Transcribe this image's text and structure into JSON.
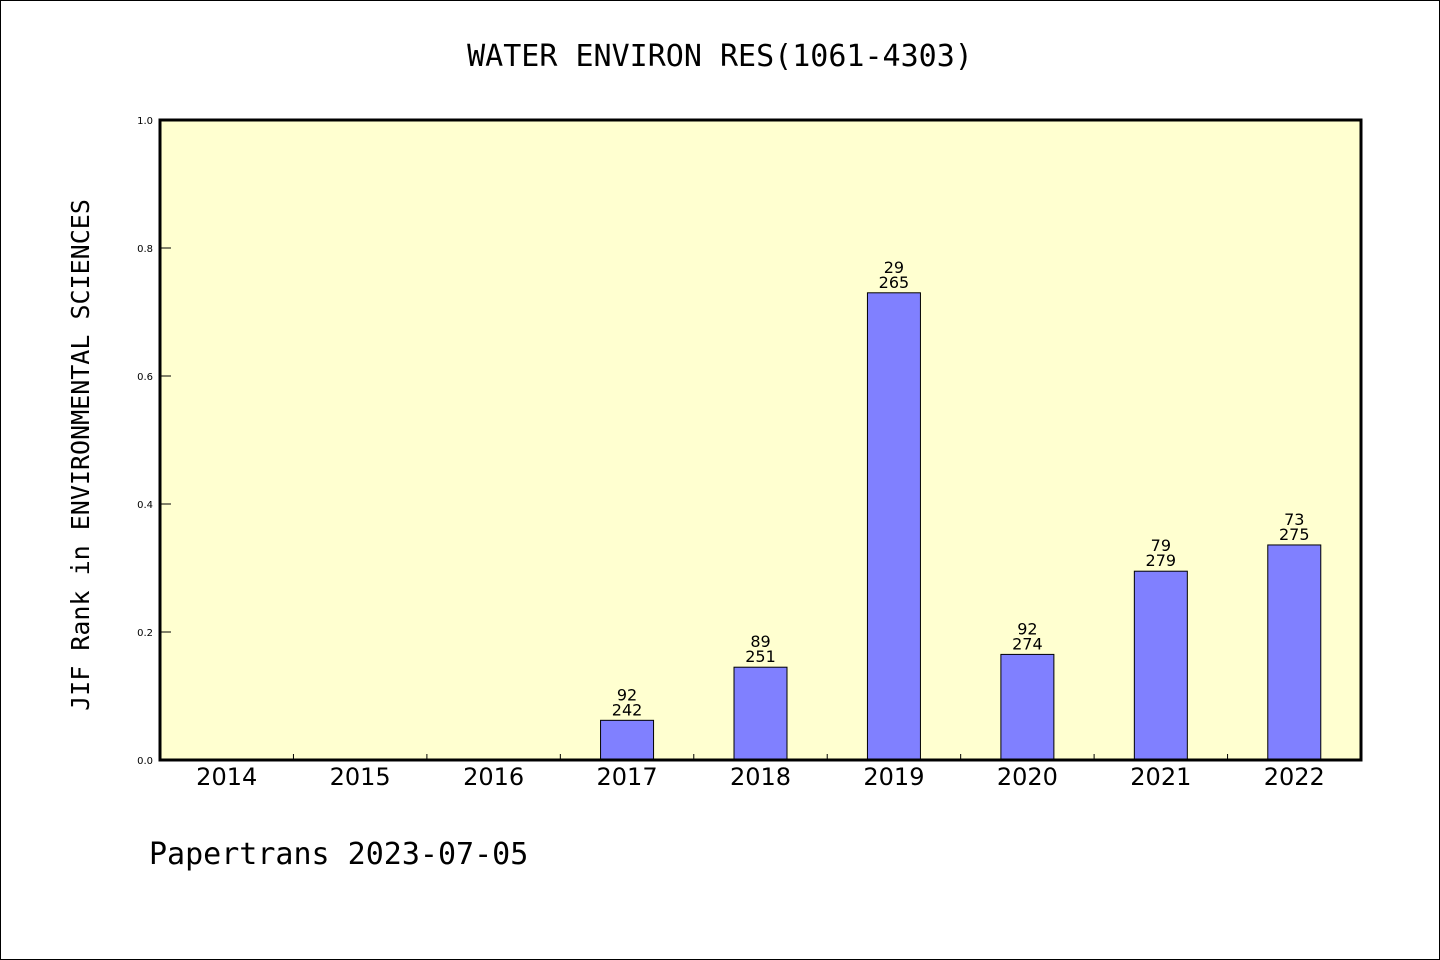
{
  "chart_data": {
    "type": "bar",
    "title": "WATER ENVIRON RES(1061-4303)",
    "ylabel": "JIF Rank in ENVIRONMENTAL SCIENCES",
    "xlabel": "",
    "categories": [
      "2014",
      "2015",
      "2016",
      "2017",
      "2018",
      "2019",
      "2020",
      "2021",
      "2022"
    ],
    "values": [
      null,
      null,
      null,
      0.062,
      0.145,
      0.73,
      0.165,
      0.295,
      0.336
    ],
    "rank": [
      null,
      null,
      null,
      "92",
      "89",
      "29",
      "92",
      "79",
      "73"
    ],
    "total": [
      null,
      null,
      null,
      "242",
      "251",
      "265",
      "274",
      "279",
      "275"
    ],
    "ylim": [
      0,
      1.0
    ],
    "yticks": [
      "0.0",
      "0.2",
      "0.4",
      "0.6",
      "0.8",
      "1.0"
    ],
    "grid": false,
    "colors": {
      "plot_background": "#ffffd0",
      "bar_fill": "#8080ff",
      "bar_stroke": "#000000"
    }
  },
  "footer": {
    "text": "Papertrans 2023-07-05"
  }
}
